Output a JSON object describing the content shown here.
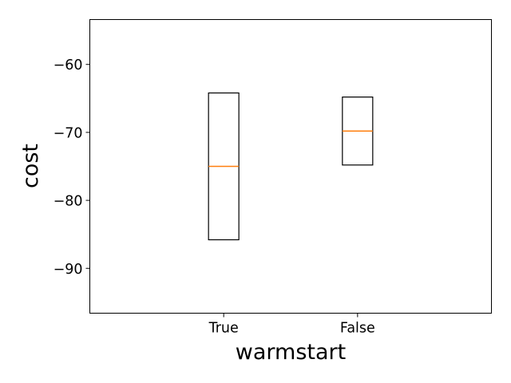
{
  "chart_data": {
    "type": "boxplot",
    "title": "",
    "xlabel": "warmstart",
    "ylabel": "cost",
    "categories": [
      "True",
      "False"
    ],
    "boxes": [
      {
        "category": "True",
        "min": -85.8,
        "q1": -85.8,
        "median": -75.0,
        "q3": -64.2,
        "max": -64.2
      },
      {
        "category": "False",
        "min": -74.8,
        "q1": -74.8,
        "median": -69.8,
        "q3": -64.8,
        "max": -64.8
      }
    ],
    "ylim": [
      -96.6,
      -53.4
    ],
    "yticks": [
      -90,
      -80,
      -70,
      -60
    ],
    "ytick_labels": [
      "−90",
      "−80",
      "−70",
      "−60"
    ],
    "grid": false,
    "legend": "none",
    "colors": {
      "box": "#000000",
      "median": "#ff7f0e",
      "background": "#ffffff"
    }
  }
}
